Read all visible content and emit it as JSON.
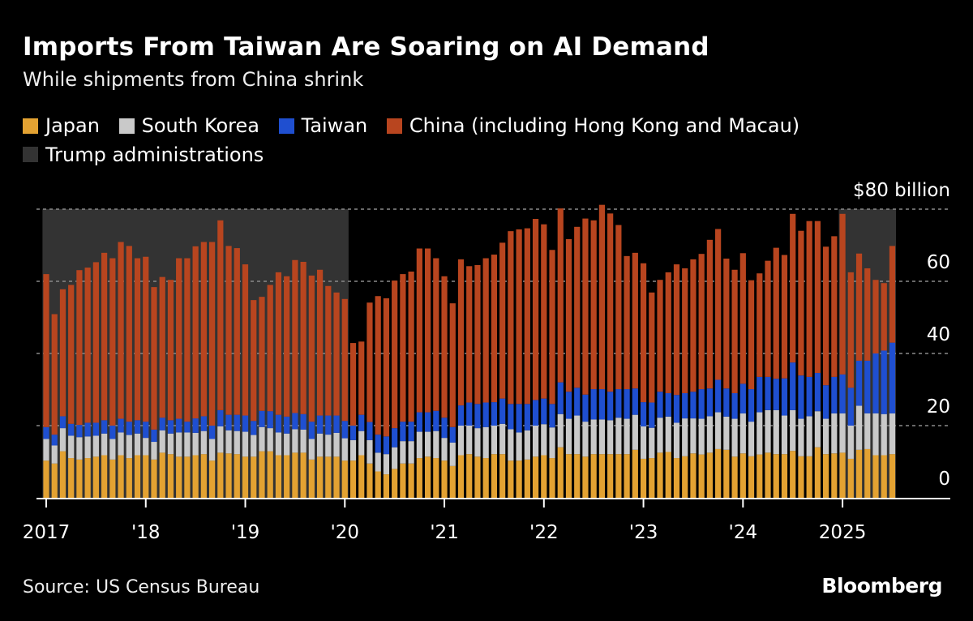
{
  "header": {
    "title": "Imports From Taiwan Are Soaring on AI Demand",
    "subtitle": "While shipments from China shrink"
  },
  "legend": [
    {
      "label": "Japan",
      "color": "#e3a232"
    },
    {
      "label": "South Korea",
      "color": "#c9c9c9"
    },
    {
      "label": "Taiwan",
      "color": "#1f4fd0"
    },
    {
      "label": "China (including Hong Kong and Macau)",
      "color": "#b8451f"
    },
    {
      "label": "Trump administrations",
      "color": "#333333"
    }
  ],
  "footer": {
    "source": "Source: US Census Bureau",
    "logo": "Bloomberg"
  },
  "chart_data": {
    "type": "bar",
    "stacked": true,
    "unit_label": "$80 billion",
    "ylim": [
      0,
      80
    ],
    "yticks": [
      0,
      20,
      40,
      60,
      80
    ],
    "ytick_labels": [
      "0",
      "20",
      "40",
      "60",
      "$80 billion"
    ],
    "grid": true,
    "xtick_labels": [
      {
        "x": "2017-01",
        "label": "2017"
      },
      {
        "x": "2018-01",
        "label": "'18"
      },
      {
        "x": "2019-01",
        "label": "'19"
      },
      {
        "x": "2020-01",
        "label": "'20"
      },
      {
        "x": "2021-01",
        "label": "'21"
      },
      {
        "x": "2022-01",
        "label": "'22"
      },
      {
        "x": "2023-01",
        "label": "'23"
      },
      {
        "x": "2024-01",
        "label": "'24"
      },
      {
        "x": "2025-01",
        "label": "2025"
      }
    ],
    "shaded_periods": [
      {
        "name": "Trump administrations",
        "start": "2017-01",
        "end": "2020-01"
      },
      {
        "name": "Trump administrations",
        "start": "2025-01",
        "end": "2025-07"
      }
    ],
    "x": [
      "2017-01",
      "2017-02",
      "2017-03",
      "2017-04",
      "2017-05",
      "2017-06",
      "2017-07",
      "2017-08",
      "2017-09",
      "2017-10",
      "2017-11",
      "2017-12",
      "2018-01",
      "2018-02",
      "2018-03",
      "2018-04",
      "2018-05",
      "2018-06",
      "2018-07",
      "2018-08",
      "2018-09",
      "2018-10",
      "2018-11",
      "2018-12",
      "2019-01",
      "2019-02",
      "2019-03",
      "2019-04",
      "2019-05",
      "2019-06",
      "2019-07",
      "2019-08",
      "2019-09",
      "2019-10",
      "2019-11",
      "2019-12",
      "2020-01",
      "2020-02",
      "2020-03",
      "2020-04",
      "2020-05",
      "2020-06",
      "2020-07",
      "2020-08",
      "2020-09",
      "2020-10",
      "2020-11",
      "2020-12",
      "2021-01",
      "2021-02",
      "2021-03",
      "2021-04",
      "2021-05",
      "2021-06",
      "2021-07",
      "2021-08",
      "2021-09",
      "2021-10",
      "2021-11",
      "2021-12",
      "2022-01",
      "2022-02",
      "2022-03",
      "2022-04",
      "2022-05",
      "2022-06",
      "2022-07",
      "2022-08",
      "2022-09",
      "2022-10",
      "2022-11",
      "2022-12",
      "2023-01",
      "2023-02",
      "2023-03",
      "2023-04",
      "2023-05",
      "2023-06",
      "2023-07",
      "2023-08",
      "2023-09",
      "2023-10",
      "2023-11",
      "2023-12",
      "2024-01",
      "2024-02",
      "2024-03",
      "2024-04",
      "2024-05",
      "2024-06",
      "2024-07",
      "2024-08",
      "2024-09",
      "2024-10",
      "2024-11",
      "2024-12",
      "2025-01",
      "2025-02",
      "2025-03",
      "2025-04",
      "2025-05",
      "2025-06",
      "2025-07"
    ],
    "series": [
      {
        "name": "Japan",
        "color": "#e3a232",
        "values": [
          10.3,
          9.5,
          12.9,
          11.0,
          10.6,
          11.0,
          11.4,
          11.8,
          10.6,
          11.8,
          11.0,
          11.8,
          11.8,
          10.6,
          12.5,
          12.1,
          11.4,
          11.4,
          11.8,
          12.1,
          10.3,
          12.5,
          12.3,
          12.1,
          11.4,
          11.4,
          12.9,
          12.9,
          11.8,
          11.8,
          12.5,
          12.5,
          10.6,
          11.4,
          11.4,
          11.4,
          10.3,
          10.3,
          11.8,
          9.5,
          7.3,
          6.5,
          8.0,
          9.5,
          9.5,
          11.0,
          11.4,
          11.0,
          10.3,
          8.8,
          11.8,
          12.1,
          11.4,
          11.0,
          12.1,
          12.1,
          10.3,
          10.3,
          10.6,
          11.4,
          11.8,
          11.0,
          14.0,
          12.1,
          12.1,
          11.4,
          12.1,
          12.1,
          12.1,
          12.1,
          12.1,
          13.3,
          10.8,
          11.0,
          12.5,
          12.7,
          11.0,
          11.5,
          12.3,
          12.0,
          12.5,
          13.5,
          13.3,
          11.4,
          12.3,
          11.5,
          12.0,
          12.5,
          12.1,
          12.1,
          13.0,
          11.5,
          11.5,
          14.0,
          12.1,
          12.3,
          12.5,
          10.8,
          13.3,
          13.5,
          11.8,
          11.8,
          12.1
        ]
      },
      {
        "name": "South Korea",
        "color": "#c9c9c9",
        "values": [
          6.0,
          5.0,
          6.4,
          6.2,
          6.2,
          6.0,
          5.8,
          6.0,
          5.7,
          6.3,
          6.4,
          6.0,
          4.8,
          4.9,
          6.2,
          5.7,
          6.7,
          6.7,
          6.2,
          6.4,
          6.0,
          7.3,
          6.4,
          6.4,
          6.9,
          6.0,
          6.7,
          6.4,
          6.3,
          6.0,
          6.5,
          6.4,
          5.7,
          6.4,
          6.1,
          6.6,
          6.2,
          5.7,
          6.7,
          6.5,
          5.2,
          5.6,
          6.0,
          6.2,
          6.2,
          7.3,
          6.9,
          7.5,
          6.3,
          6.5,
          8.2,
          7.9,
          7.9,
          8.6,
          7.9,
          8.4,
          8.7,
          7.8,
          8.1,
          8.6,
          8.6,
          8.5,
          9.2,
          9.8,
          10.7,
          9.7,
          9.6,
          9.6,
          9.4,
          10.1,
          9.8,
          9.7,
          9.0,
          8.4,
          9.7,
          9.8,
          9.8,
          10.5,
          9.7,
          9.9,
          10.1,
          10.2,
          9.2,
          10.5,
          11.1,
          9.6,
          11.7,
          11.8,
          12.2,
          10.7,
          11.3,
          10.4,
          11.1,
          10.0,
          9.8,
          11.1,
          10.9,
          9.2,
          12.2,
          9.9,
          11.6,
          11.4,
          11.3
        ]
      },
      {
        "name": "Taiwan",
        "color": "#1f4fd0",
        "values": [
          3.3,
          3.0,
          3.3,
          3.3,
          3.4,
          3.8,
          3.6,
          3.7,
          3.7,
          3.8,
          3.7,
          3.7,
          4.5,
          3.4,
          3.5,
          3.7,
          3.8,
          3.0,
          4.0,
          4.1,
          3.7,
          4.5,
          4.3,
          4.5,
          4.5,
          3.9,
          4.5,
          4.7,
          4.9,
          4.7,
          4.5,
          4.3,
          4.8,
          5.0,
          5.3,
          4.8,
          4.8,
          4.0,
          4.5,
          5.0,
          5.0,
          4.9,
          5.3,
          5.4,
          5.4,
          5.4,
          5.4,
          5.6,
          5.6,
          4.3,
          5.6,
          6.4,
          6.7,
          6.8,
          6.5,
          7.0,
          7.0,
          7.9,
          7.3,
          7.1,
          7.1,
          6.5,
          8.8,
          7.5,
          7.7,
          7.5,
          8.4,
          8.4,
          7.9,
          7.9,
          8.2,
          7.3,
          6.7,
          7.0,
          7.2,
          6.5,
          7.7,
          7.0,
          7.4,
          8.2,
          7.7,
          9.0,
          7.8,
          7.1,
          8.2,
          9.0,
          9.8,
          9.2,
          8.7,
          10.3,
          13.2,
          12.0,
          10.9,
          10.6,
          9.3,
          10.1,
          10.8,
          10.5,
          12.5,
          14.6,
          16.6,
          17.6,
          19.6
        ]
      },
      {
        "name": "China (including Hong Kong and Macau)",
        "color": "#b8451f",
        "values": [
          42.4,
          33.4,
          35.2,
          38.5,
          42.9,
          43.0,
          44.5,
          46.4,
          46.4,
          49.0,
          48.7,
          44.9,
          45.7,
          39.5,
          39.0,
          38.9,
          44.5,
          45.3,
          47.7,
          48.3,
          50.9,
          52.6,
          46.8,
          46.2,
          41.9,
          33.5,
          31.6,
          35.0,
          39.5,
          38.9,
          42.4,
          42.2,
          40.5,
          40.4,
          35.9,
          34.1,
          33.8,
          22.9,
          20.3,
          33.1,
          38.4,
          38.3,
          40.9,
          40.9,
          41.6,
          45.4,
          45.4,
          42.3,
          39.2,
          34.3,
          40.5,
          37.8,
          38.5,
          40.0,
          40.9,
          43.2,
          47.9,
          48.4,
          48.7,
          50.2,
          48.3,
          42.7,
          48.2,
          42.3,
          44.6,
          48.8,
          46.8,
          51.1,
          49.4,
          45.5,
          36.9,
          37.6,
          38.5,
          30.5,
          31.0,
          33.5,
          36.2,
          34.6,
          36.7,
          37.5,
          41.2,
          41.8,
          36.0,
          34.2,
          36.2,
          30.2,
          28.7,
          32.2,
          36.3,
          34.2,
          41.2,
          40.1,
          43.2,
          42.1,
          38.4,
          39.0,
          44.5,
          32.0,
          29.7,
          25.6,
          20.4,
          18.7,
          26.8
        ]
      }
    ]
  }
}
